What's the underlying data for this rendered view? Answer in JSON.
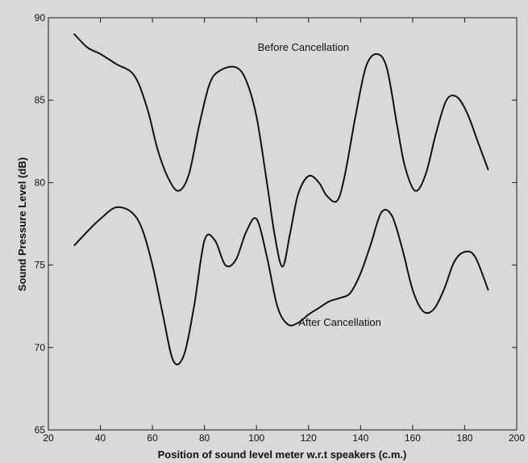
{
  "chart_data": {
    "type": "line",
    "xlabel": "Position of sound level meter w.r.t speakers (c.m.)",
    "ylabel": "Sound Pressure Level (dB)",
    "xlim": [
      20,
      200
    ],
    "ylim": [
      65,
      90
    ],
    "xticks": [
      20,
      40,
      60,
      80,
      100,
      120,
      140,
      160,
      180,
      200
    ],
    "yticks": [
      65,
      70,
      75,
      80,
      85,
      90
    ],
    "grid": false,
    "annotations": [
      {
        "text": "Before Cancellation",
        "x": 118,
        "y": 88
      },
      {
        "text": "After Cancellation",
        "x": 132,
        "y": 71.3
      }
    ],
    "series": [
      {
        "x": [
          30,
          35,
          40,
          46,
          53,
          58,
          62,
          66,
          70,
          74,
          78,
          82,
          86,
          92,
          96,
          100,
          104,
          107,
          110,
          113,
          116,
          120,
          124,
          127,
          131,
          134,
          138,
          142,
          146,
          150,
          154,
          157,
          161,
          165,
          169,
          173,
          177,
          181,
          185,
          189
        ],
        "y": [
          89.0,
          88.2,
          87.8,
          87.2,
          86.5,
          84.5,
          82.0,
          80.3,
          79.5,
          80.5,
          83.5,
          86.0,
          86.8,
          87.0,
          86.2,
          84.0,
          80.0,
          76.8,
          74.9,
          77.0,
          79.3,
          80.4,
          80.0,
          79.2,
          78.9,
          80.5,
          84.0,
          87.0,
          87.8,
          87.0,
          83.5,
          81.0,
          79.5,
          80.5,
          83.0,
          85.0,
          85.2,
          84.2,
          82.5,
          80.8
        ]
      },
      {
        "x": [
          30,
          36,
          40,
          46,
          52,
          56,
          60,
          64,
          68,
          72,
          76,
          80,
          84,
          88,
          92,
          96,
          100,
          104,
          108,
          112,
          116,
          120,
          124,
          128,
          132,
          136,
          140,
          144,
          148,
          152,
          156,
          160,
          164,
          168,
          172,
          176,
          180,
          184,
          189
        ],
        "y": [
          76.2,
          77.2,
          77.8,
          78.5,
          78.2,
          77.2,
          75.0,
          72.0,
          69.2,
          69.5,
          72.5,
          76.5,
          76.5,
          75.0,
          75.3,
          77.0,
          77.8,
          75.5,
          72.5,
          71.4,
          71.5,
          72.0,
          72.4,
          72.8,
          73.0,
          73.3,
          74.5,
          76.3,
          78.2,
          78.0,
          76.0,
          73.5,
          72.2,
          72.3,
          73.5,
          75.2,
          75.8,
          75.5,
          73.5
        ]
      }
    ]
  }
}
